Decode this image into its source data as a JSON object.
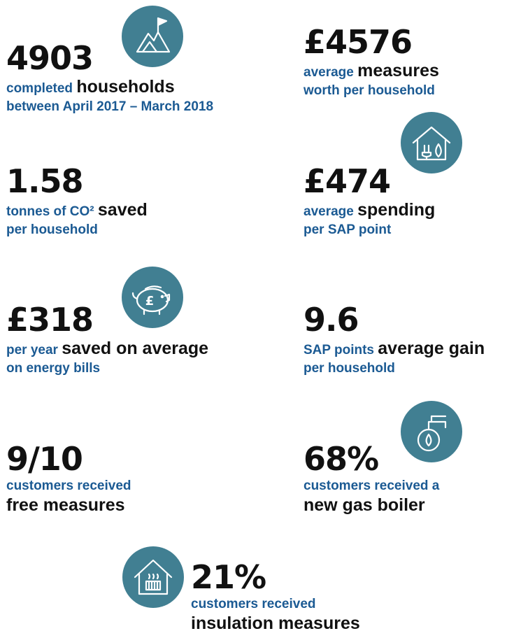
{
  "accent_color": "#417f92",
  "label_color": "#1b5a93",
  "stats": [
    {
      "value": "4903",
      "line1_blue": "completed ",
      "line1_black": "households",
      "line2": "between April 2017 – March 2018",
      "icon": "mountain-flag-icon"
    },
    {
      "value": "£4576",
      "line1_blue": "average ",
      "line1_black": "measures",
      "line2": "worth per household"
    },
    {
      "value": "1.58",
      "line1_blue": "tonnes of CO² ",
      "line1_black": "saved",
      "line2": "per household",
      "icon": "house-plug-icon"
    },
    {
      "value": "£474",
      "line1_blue": "average ",
      "line1_black": "spending",
      "line2": "per SAP point"
    },
    {
      "value": "£318",
      "line1_blue": "per year ",
      "line1_black": "saved on average",
      "line2": "on energy bills",
      "icon": "piggy-bank-icon"
    },
    {
      "value": "9.6",
      "line1_blue": "SAP points ",
      "line1_black": "average gain",
      "line2": "per household"
    },
    {
      "value": "9/10",
      "line1_blue": "customers received",
      "line2_black": "free measures",
      "icon": "gas-boiler-icon"
    },
    {
      "value": "68%",
      "line1_blue": "customers received a",
      "line2_black": "new gas boiler"
    },
    {
      "value": "21%",
      "line1_blue": "customers received",
      "line2_black": "insulation measures",
      "icon": "house-insulation-icon"
    }
  ]
}
